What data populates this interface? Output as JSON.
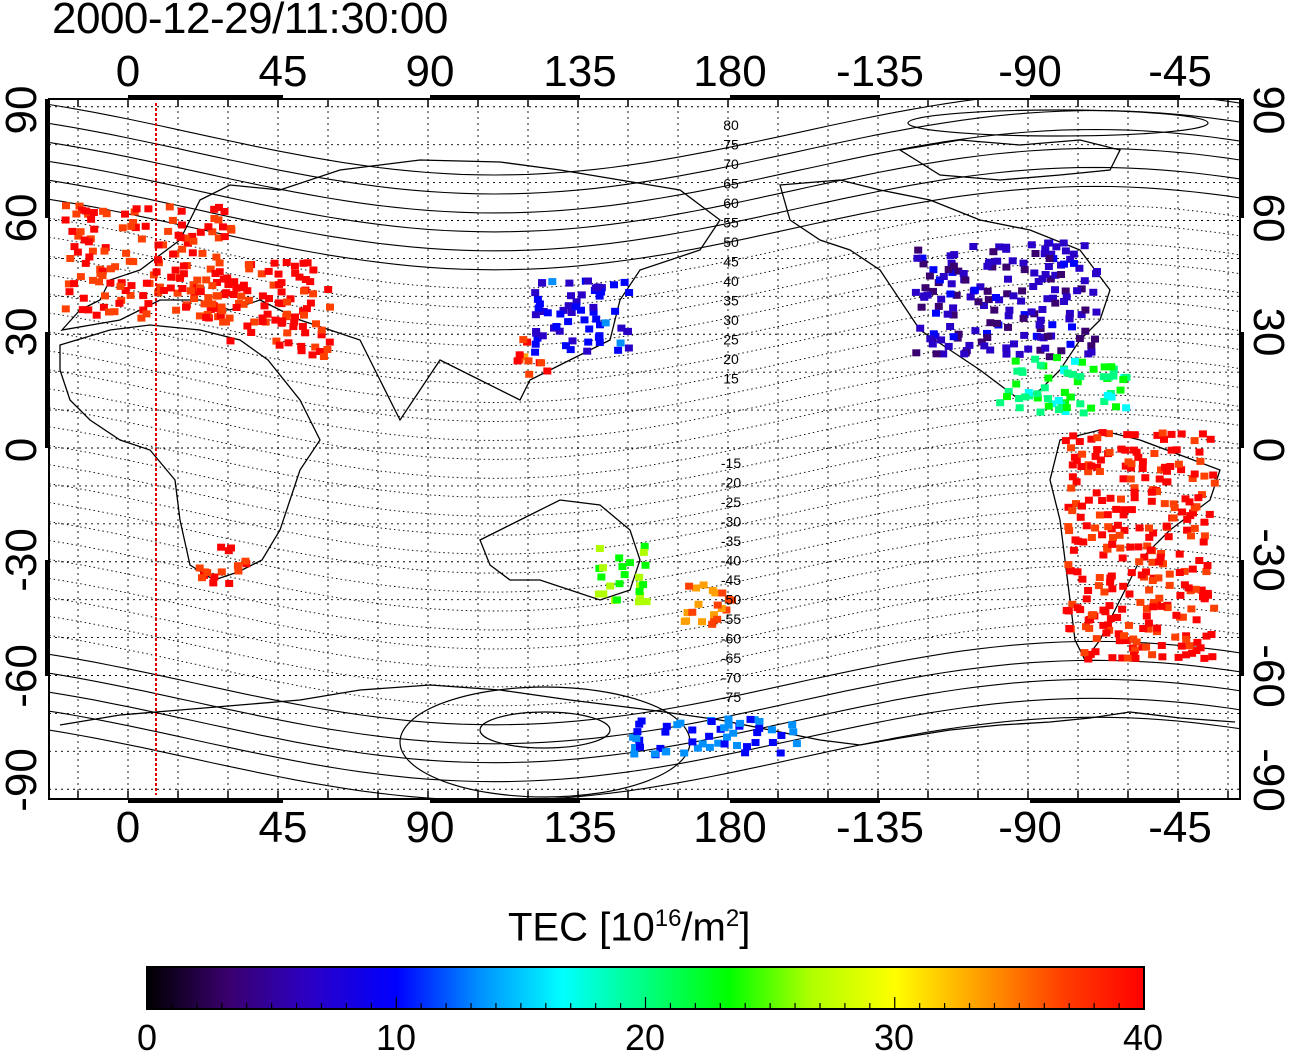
{
  "title": "2000-12-29/11:30:00",
  "top_x_ticks": [
    "0",
    "45",
    "90",
    "135",
    "180",
    "-135",
    "-90",
    "-45"
  ],
  "bottom_x_ticks": [
    "0",
    "45",
    "90",
    "135",
    "180",
    "-135",
    "-90",
    "-45"
  ],
  "left_y_ticks": [
    "90",
    "60",
    "30",
    "0",
    "-30",
    "-60",
    "-90"
  ],
  "right_y_ticks": [
    "90",
    "60",
    "30",
    "0",
    "-30",
    "-60",
    "-90"
  ],
  "contour_labels_north": [
    "80",
    "75",
    "70",
    "65",
    "60",
    "55",
    "50",
    "45",
    "40",
    "35",
    "30",
    "25",
    "20",
    "15"
  ],
  "contour_labels_south": [
    "-15",
    "-20",
    "-25",
    "-30",
    "-35",
    "-40",
    "-45",
    "-50",
    "-55",
    "-60",
    "-65",
    "-70",
    "-75"
  ],
  "colorbar": {
    "label_main": "TEC  [10",
    "label_exp1": "16",
    "label_mid": "/m",
    "label_exp2": "2",
    "label_end": "]",
    "ticks": [
      "0",
      "10",
      "20",
      "30",
      "40"
    ],
    "colors": [
      "#000000",
      "#3a0070",
      "#2a00c8",
      "#0000ff",
      "#0090ff",
      "#00ffff",
      "#00ff80",
      "#00ff00",
      "#b0ff00",
      "#ffff00",
      "#ffa000",
      "#ff4000",
      "#ff0000"
    ]
  },
  "chart_data": {
    "type": "heatmap",
    "title": "2000-12-29/11:30:00",
    "xlabel": "",
    "ylabel": "",
    "colorbar_label": "TEC [10^16/m^2]",
    "colorbar_range": [
      0,
      40
    ],
    "x_ticks": [
      0,
      45,
      90,
      135,
      180,
      -135,
      -90,
      -45
    ],
    "y_ticks": [
      90,
      60,
      30,
      0,
      -30,
      -60,
      -90
    ],
    "ylim": [
      -90,
      90
    ],
    "grid": true,
    "subsolar_longitude_marker": 8,
    "regions": [
      {
        "lon": [
          -20,
          30
        ],
        "lat": [
          35,
          65
        ],
        "tec": 38
      },
      {
        "lon": [
          25,
          60
        ],
        "lat": [
          25,
          50
        ],
        "tec": 39
      },
      {
        "lon": [
          120,
          150
        ],
        "lat": [
          25,
          45
        ],
        "tec": 9
      },
      {
        "lon": [
          115,
          125
        ],
        "lat": [
          20,
          30
        ],
        "tec": 37
      },
      {
        "lon": [
          -125,
          -70
        ],
        "lat": [
          25,
          55
        ],
        "tec": 6
      },
      {
        "lon": [
          -100,
          -60
        ],
        "lat": [
          10,
          25
        ],
        "tec": 20
      },
      {
        "lon": [
          -80,
          -35
        ],
        "lat": [
          -55,
          5
        ],
        "tec": 39
      },
      {
        "lon": [
          165,
          180
        ],
        "lat": [
          -48,
          -35
        ],
        "tec": 35
      },
      {
        "lon": [
          140,
          155
        ],
        "lat": [
          -40,
          -25
        ],
        "tec": 25
      },
      {
        "lon": [
          20,
          35
        ],
        "lat": [
          -35,
          -25
        ],
        "tec": 39
      },
      {
        "lon": [
          150,
          -160
        ],
        "lat": [
          -80,
          -70
        ],
        "tec": 12
      }
    ]
  }
}
